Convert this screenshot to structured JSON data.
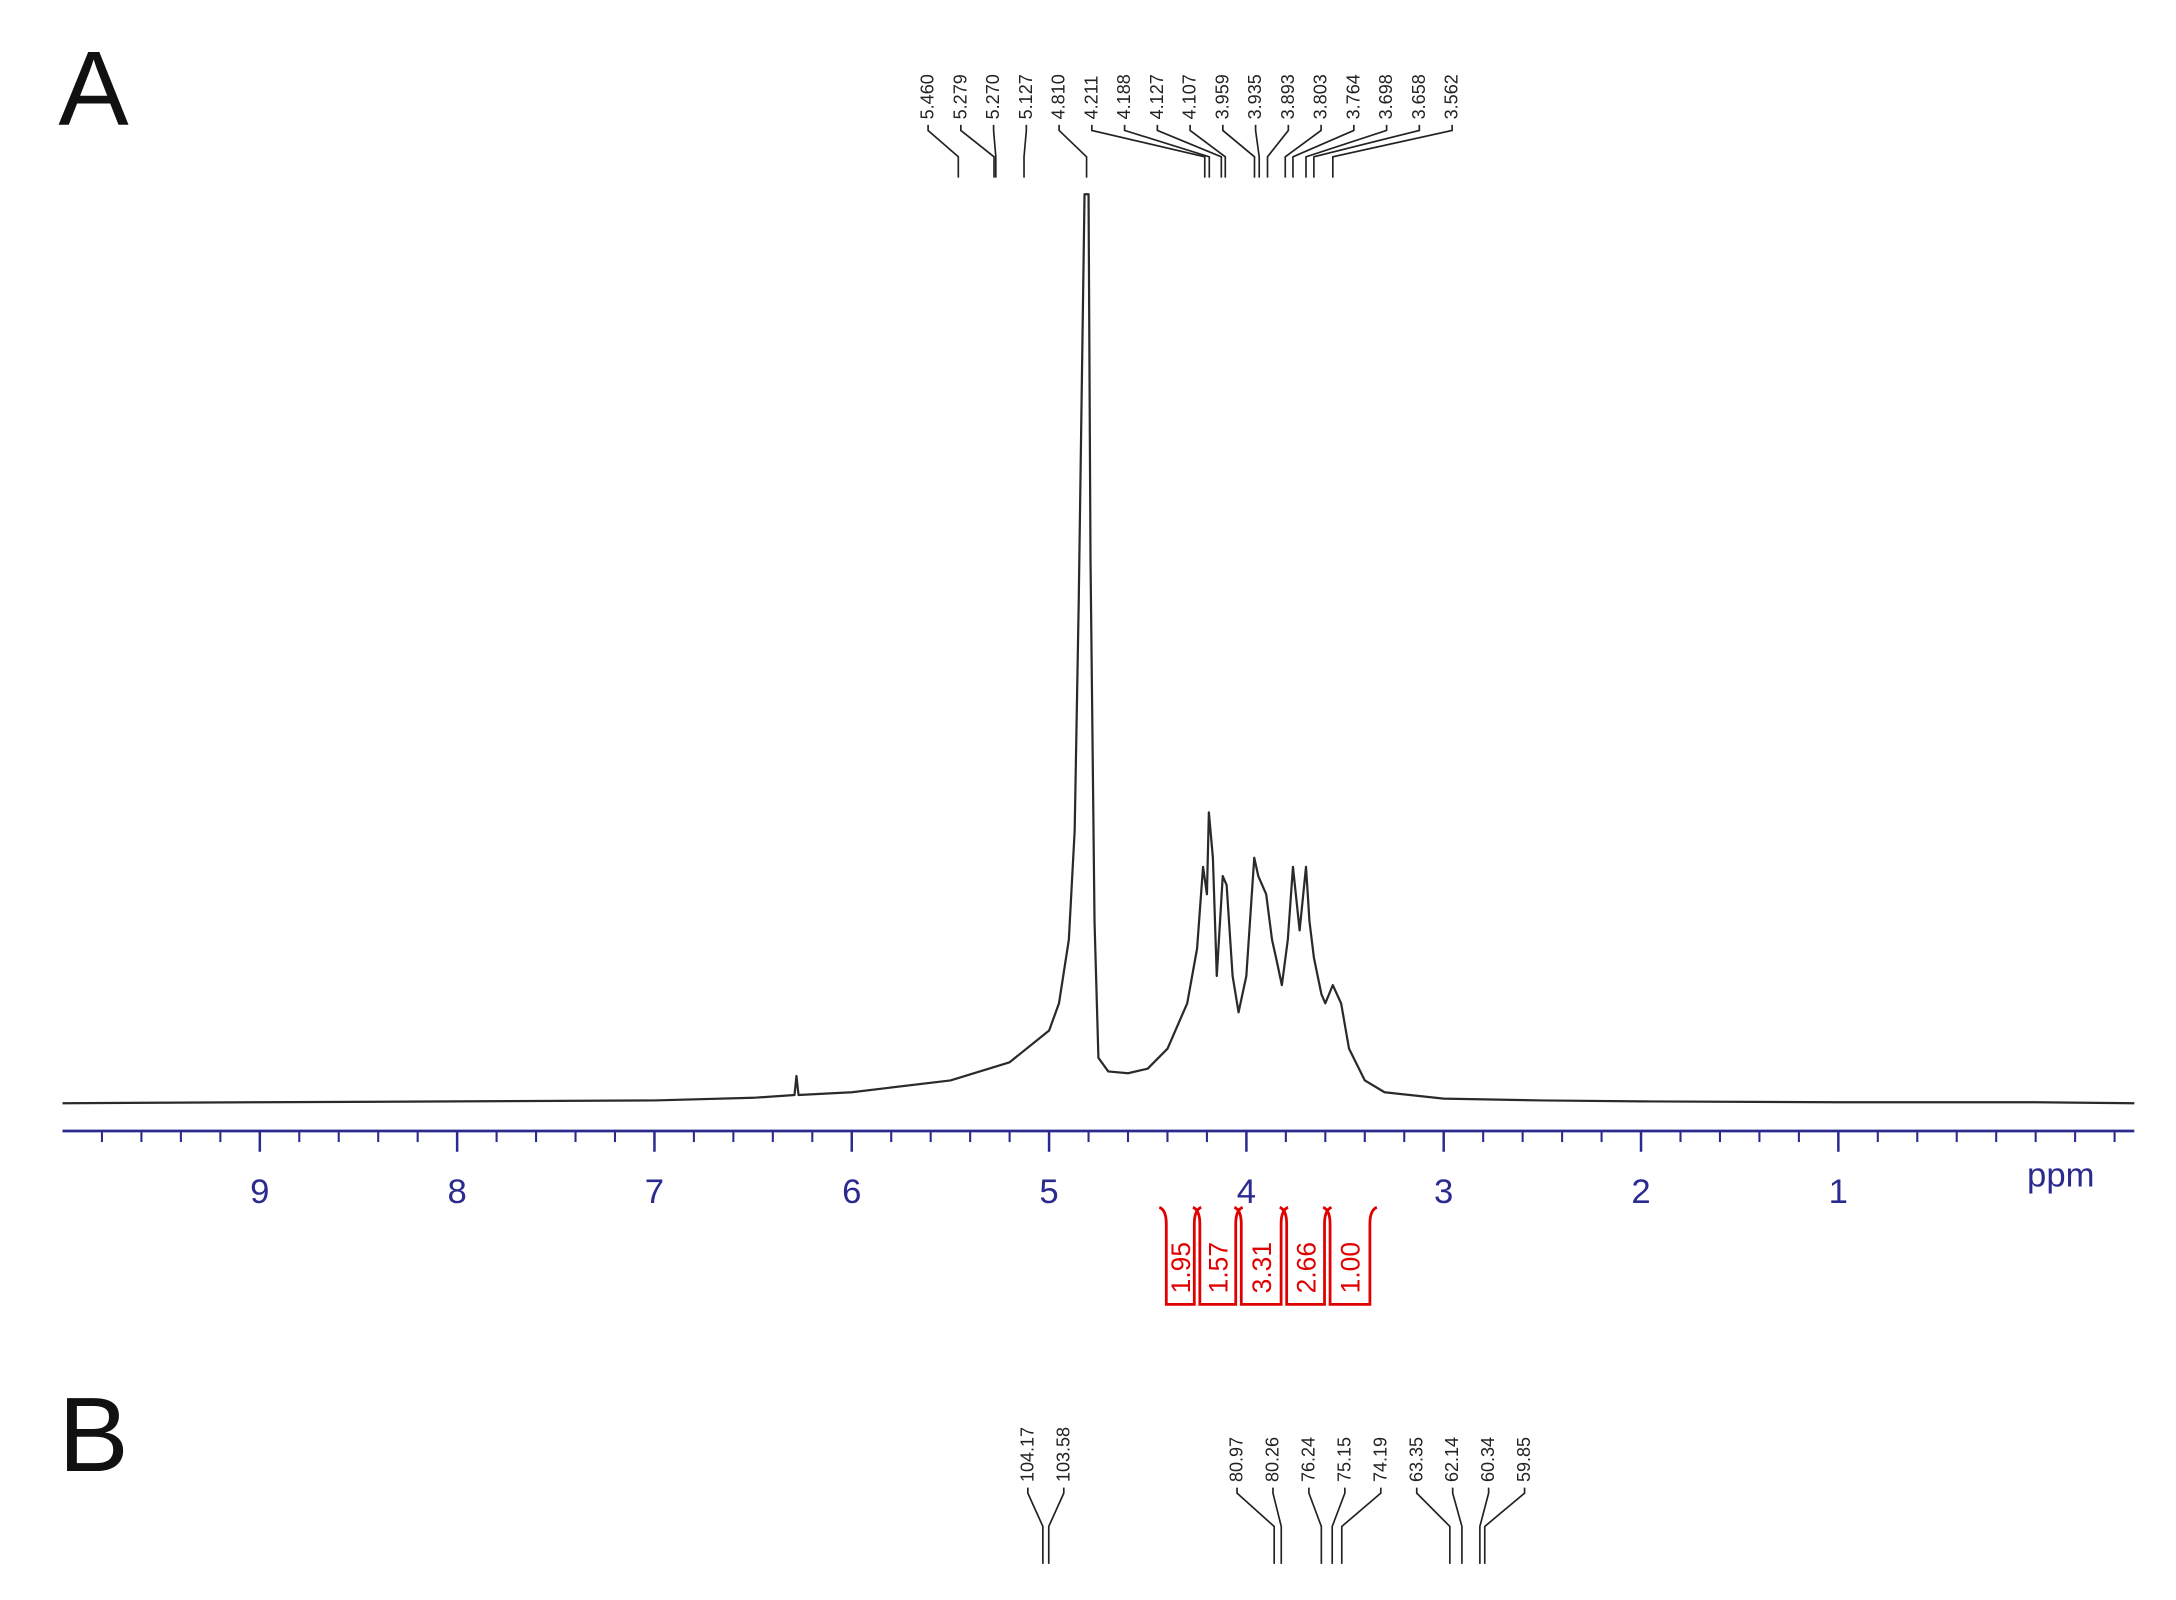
{
  "chart_data": [
    {
      "type": "spectrum",
      "panel_label": "A",
      "color": "#2a2a2a",
      "x": [
        10.0,
        9.0,
        8.0,
        7.0,
        6.5,
        6.29,
        6.28,
        6.27,
        6.0,
        5.5,
        5.2,
        5.0,
        4.95,
        4.9,
        4.87,
        4.85,
        4.82,
        4.81,
        4.8,
        4.79,
        4.77,
        4.75,
        4.7,
        4.6,
        4.5,
        4.4,
        4.3,
        4.25,
        4.22,
        4.2,
        4.19,
        4.17,
        4.15,
        4.12,
        4.1,
        4.07,
        4.04,
        4.0,
        3.96,
        3.94,
        3.9,
        3.87,
        3.85,
        3.82,
        3.79,
        3.764,
        3.73,
        3.698,
        3.68,
        3.658,
        3.62,
        3.6,
        3.562,
        3.52,
        3.48,
        3.4,
        3.3,
        3.0,
        2.5,
        2.0,
        1.0,
        0.0,
        -0.5
      ],
      "values": [
        0,
        0.1,
        0.2,
        0.3,
        0.6,
        0.9,
        3,
        0.9,
        1.2,
        2.5,
        4.5,
        8,
        11,
        18,
        30,
        55,
        100,
        100,
        100,
        60,
        20,
        5,
        3.5,
        3.3,
        3.8,
        6,
        11,
        17,
        26,
        23,
        32,
        27,
        14,
        25,
        24,
        14,
        10,
        14,
        27,
        25,
        23,
        18,
        16,
        13,
        18,
        26,
        19,
        26,
        20,
        16,
        12,
        11,
        13,
        11,
        6,
        2.5,
        1.2,
        0.5,
        0.3,
        0.2,
        0.1,
        0.1,
        0
      ],
      "xlim": [
        10.0,
        -0.5
      ],
      "ylim": [
        0,
        100
      ],
      "xticks": [
        1,
        2,
        3,
        4,
        5,
        6,
        7,
        8,
        9
      ],
      "xminorticks": [
        -0.4,
        -0.2,
        0,
        0.2,
        0.4,
        0.6,
        0.8,
        1.2,
        1.4,
        1.6,
        1.8,
        2.2,
        2.4,
        2.6,
        2.8,
        3.2,
        3.4,
        3.6,
        3.8,
        4.2,
        4.4,
        4.6,
        4.8,
        5.2,
        5.4,
        5.6,
        5.8,
        6.2,
        6.4,
        6.6,
        6.8,
        7.2,
        7.4,
        7.6,
        7.8,
        8.2,
        8.4,
        8.6,
        8.8,
        9.2,
        9.4,
        9.6,
        9.8
      ],
      "xlabel": "ppm",
      "axis_color": "#2b2b8f",
      "peaks": [
        {
          "value": 5.46,
          "label": "5.460"
        },
        5.279,
        {
          "value": 5.27,
          "label": "5.270"
        },
        5.127,
        {
          "value": 4.81,
          "label": "4.810"
        },
        4.211,
        4.188,
        4.127,
        4.107,
        3.959,
        3.935,
        3.893,
        3.803,
        3.764,
        3.698,
        3.658,
        3.562
      ],
      "integrals": {
        "values": [
          1.95,
          1.57,
          3.31,
          2.66,
          1.0
        ],
        "value_labels": [
          "1.95",
          "1.57",
          "3.31",
          "2.66",
          "1.00"
        ],
        "ranges": [
          [
            4.42,
            4.25
          ],
          [
            4.25,
            4.04
          ],
          [
            4.04,
            3.81
          ],
          [
            3.81,
            3.59
          ],
          [
            3.59,
            3.36
          ]
        ],
        "color": "#e00000"
      }
    },
    {
      "type": "peaks",
      "panel_label": "B",
      "xlim": [
        202.5,
        -5.3
      ],
      "peaks": [
        104.17,
        103.58,
        80.97,
        80.26,
        76.24,
        75.15,
        74.19,
        63.35,
        62.14,
        60.34,
        59.85
      ]
    }
  ]
}
